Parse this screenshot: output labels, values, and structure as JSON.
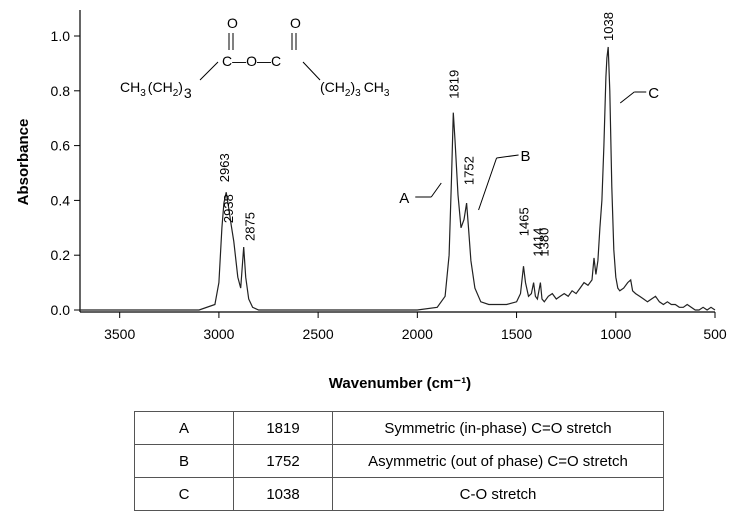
{
  "chart_data": {
    "type": "line",
    "xlabel": "Wavenumber (cm⁻¹)",
    "ylabel": "Absorbance",
    "xlim": [
      3700,
      500
    ],
    "ylim": [
      0,
      1.1
    ],
    "x_reversed": true,
    "grid": false,
    "x_ticks": [
      3500,
      3000,
      2500,
      2000,
      1500,
      1000,
      500
    ],
    "y_ticks": [
      0.0,
      0.2,
      0.4,
      0.6,
      0.8,
      1.0
    ],
    "x_tick_labels": [
      "3500",
      "3000",
      "2500",
      "2000",
      "1500",
      "1000",
      "500"
    ],
    "y_tick_labels": [
      "0.0",
      "0.2",
      "0.4",
      "0.6",
      "0.8",
      "1.0"
    ],
    "series": [
      {
        "x": [
          3700,
          3600,
          3500,
          3300,
          3100,
          3020,
          3000,
          2985,
          2975,
          2963,
          2950,
          2938,
          2925,
          2905,
          2890,
          2875,
          2865,
          2850,
          2830,
          2800,
          2600,
          2400,
          2200,
          2000,
          1900,
          1860,
          1840,
          1828,
          1819,
          1810,
          1795,
          1780,
          1765,
          1752,
          1742,
          1730,
          1710,
          1680,
          1640,
          1600,
          1550,
          1500,
          1480,
          1465,
          1455,
          1440,
          1425,
          1414,
          1405,
          1395,
          1380,
          1372,
          1360,
          1340,
          1320,
          1300,
          1280,
          1260,
          1240,
          1220,
          1200,
          1180,
          1160,
          1140,
          1120,
          1110,
          1100,
          1090,
          1080,
          1070,
          1060,
          1050,
          1045,
          1038,
          1030,
          1020,
          1010,
          1000,
          990,
          980,
          960,
          940,
          925,
          915,
          900,
          880,
          860,
          840,
          820,
          800,
          780,
          760,
          740,
          720,
          700,
          680,
          660,
          640,
          620,
          600,
          580,
          560,
          540,
          520,
          500
        ],
        "y": [
          0.0,
          0.0,
          0.0,
          0.0,
          0.0,
          0.02,
          0.1,
          0.3,
          0.39,
          0.43,
          0.37,
          0.31,
          0.25,
          0.12,
          0.08,
          0.23,
          0.12,
          0.04,
          0.01,
          0.0,
          0.0,
          0.0,
          0.0,
          0.0,
          0.01,
          0.05,
          0.2,
          0.48,
          0.72,
          0.62,
          0.42,
          0.3,
          0.33,
          0.39,
          0.3,
          0.18,
          0.08,
          0.03,
          0.02,
          0.02,
          0.02,
          0.03,
          0.06,
          0.16,
          0.1,
          0.05,
          0.06,
          0.1,
          0.05,
          0.04,
          0.1,
          0.04,
          0.03,
          0.05,
          0.06,
          0.04,
          0.05,
          0.06,
          0.05,
          0.07,
          0.06,
          0.08,
          0.1,
          0.09,
          0.11,
          0.19,
          0.13,
          0.18,
          0.3,
          0.4,
          0.6,
          0.85,
          0.92,
          0.96,
          0.8,
          0.45,
          0.22,
          0.12,
          0.08,
          0.07,
          0.08,
          0.1,
          0.11,
          0.07,
          0.06,
          0.05,
          0.04,
          0.03,
          0.04,
          0.05,
          0.03,
          0.02,
          0.03,
          0.02,
          0.02,
          0.01,
          0.01,
          0.02,
          0.01,
          0.0,
          0.0,
          0.01,
          0.0,
          0.01,
          0.0
        ]
      }
    ],
    "peak_labels": [
      {
        "text": "2963",
        "x": 2963,
        "y": 0.43
      },
      {
        "text": "2938",
        "x": 2938,
        "y": 0.31
      },
      {
        "text": "2875",
        "x": 2875,
        "y": 0.23
      },
      {
        "text": "1819",
        "x": 1819,
        "y": 0.72
      },
      {
        "text": "1752",
        "x": 1752,
        "y": 0.39
      },
      {
        "text": "1465",
        "x": 1465,
        "y": 0.16
      },
      {
        "text": "1414",
        "x": 1414,
        "y": 0.1
      },
      {
        "text": "1380",
        "x": 1380,
        "y": 0.1
      },
      {
        "text": "1038",
        "x": 1038,
        "y": 0.96
      }
    ],
    "callouts": [
      {
        "letter": "A",
        "x": 1819
      },
      {
        "letter": "B",
        "x": 1752
      },
      {
        "letter": "C",
        "x": 1038
      }
    ]
  },
  "structure": {
    "left_chain": "CH",
    "left_sub1": "3",
    "left_mid": "(CH",
    "left_sub2": "2",
    "left_close": ")",
    "left_n": "3",
    "right_open": "(CH",
    "right_sub1": "2",
    "right_close": ")",
    "right_n": "3",
    "right_chain": "CH",
    "right_sub2": "3",
    "oxygen_top_left": "O",
    "oxygen_top_right": "O",
    "backbone": "C—O—C"
  },
  "table": {
    "rows": [
      {
        "label": "A",
        "wavenumber": "1819",
        "assignment": "Symmetric (in-phase) C=O stretch"
      },
      {
        "label": "B",
        "wavenumber": "1752",
        "assignment": "Asymmetric (out of phase) C=O stretch"
      },
      {
        "label": "C",
        "wavenumber": "1038",
        "assignment": "C-O stretch"
      }
    ]
  }
}
